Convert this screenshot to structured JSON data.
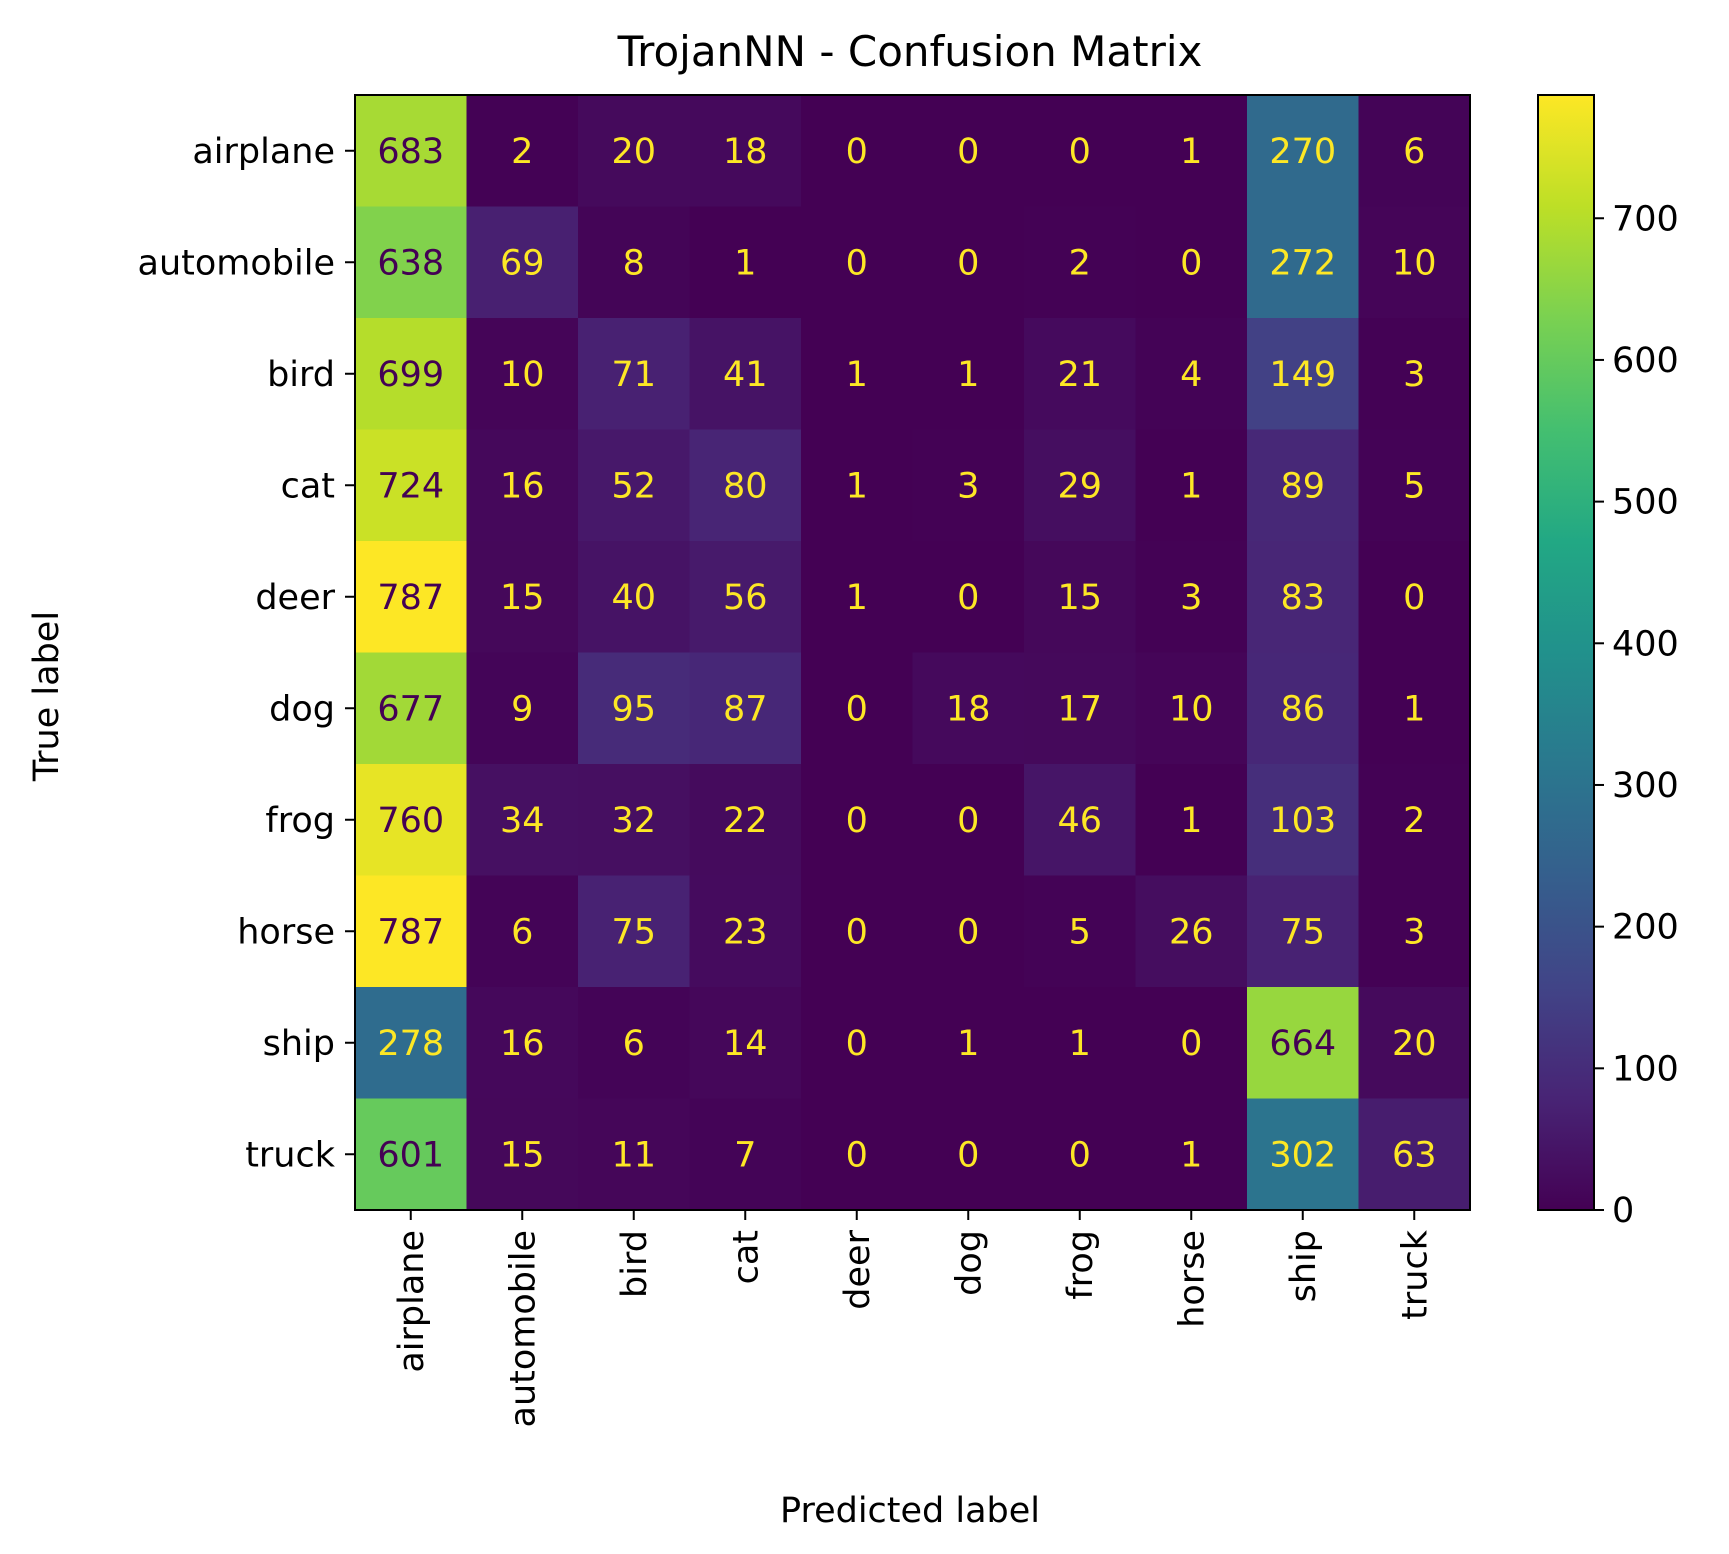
{
  "chart_data": {
    "type": "heatmap",
    "title": "TrojanNN - Confusion Matrix",
    "xlabel": "Predicted label",
    "ylabel": "True label",
    "x_categories": [
      "airplane",
      "automobile",
      "bird",
      "cat",
      "deer",
      "dog",
      "frog",
      "horse",
      "ship",
      "truck"
    ],
    "y_categories": [
      "airplane",
      "automobile",
      "bird",
      "cat",
      "deer",
      "dog",
      "frog",
      "horse",
      "ship",
      "truck"
    ],
    "values": [
      [
        683,
        2,
        20,
        18,
        0,
        0,
        0,
        1,
        270,
        6
      ],
      [
        638,
        69,
        8,
        1,
        0,
        0,
        2,
        0,
        272,
        10
      ],
      [
        699,
        10,
        71,
        41,
        1,
        1,
        21,
        4,
        149,
        3
      ],
      [
        724,
        16,
        52,
        80,
        1,
        3,
        29,
        1,
        89,
        5
      ],
      [
        787,
        15,
        40,
        56,
        1,
        0,
        15,
        3,
        83,
        0
      ],
      [
        677,
        9,
        95,
        87,
        0,
        18,
        17,
        10,
        86,
        1
      ],
      [
        760,
        34,
        32,
        22,
        0,
        0,
        46,
        1,
        103,
        2
      ],
      [
        787,
        6,
        75,
        23,
        0,
        0,
        5,
        26,
        75,
        3
      ],
      [
        278,
        16,
        6,
        14,
        0,
        1,
        1,
        0,
        664,
        20
      ],
      [
        601,
        15,
        11,
        7,
        0,
        0,
        0,
        1,
        302,
        63
      ]
    ],
    "colormap": "viridis",
    "vmin": 0,
    "vmax": 787,
    "colorbar_ticks": [
      0,
      100,
      200,
      300,
      400,
      500,
      600,
      700
    ],
    "grid": false,
    "label_colors": {
      "on_dark": "#fde725",
      "on_light": "#440154"
    }
  }
}
